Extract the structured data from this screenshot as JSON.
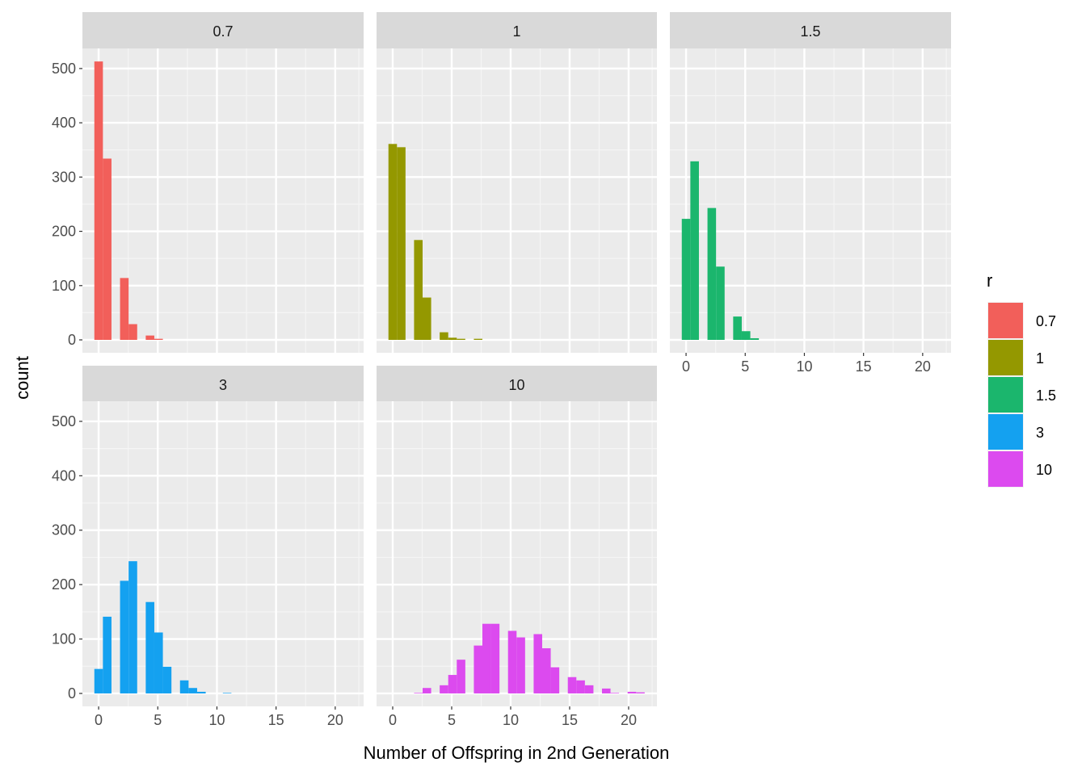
{
  "chart_data": {
    "type": "bar",
    "subtype": "faceted histogram",
    "xlabel": "Number of Offspring in 2nd Generation",
    "ylabel": "count",
    "xlim": [
      -1.37,
      22.4
    ],
    "ylim": [
      -23.8,
      537
    ],
    "x_ticks": [
      "0",
      "5",
      "10",
      "15",
      "20"
    ],
    "y_ticks": [
      "0",
      "100",
      "200",
      "300",
      "400",
      "500"
    ],
    "grid": true,
    "bins": 30,
    "legend": {
      "title": "r",
      "position": "right"
    },
    "facets": [
      {
        "label": "0.7",
        "color": "#F25F5A",
        "x": [
          0,
          1,
          2,
          3,
          4,
          5
        ],
        "counts": [
          513,
          334,
          114,
          29,
          8,
          2
        ]
      },
      {
        "label": "1",
        "color": "#949800",
        "x": [
          0,
          1,
          2,
          3,
          4,
          5,
          6,
          7
        ],
        "counts": [
          361,
          355,
          184,
          78,
          14,
          4,
          2,
          2
        ]
      },
      {
        "label": "1.5",
        "color": "#1BB66D",
        "x": [
          0,
          1,
          2,
          3,
          4,
          5,
          6
        ],
        "counts": [
          223,
          329,
          243,
          135,
          43,
          16,
          3
        ]
      },
      {
        "label": "3",
        "color": "#14A1F0",
        "x": [
          0,
          1,
          2,
          3,
          4,
          5,
          6,
          7,
          8,
          9,
          11
        ],
        "counts": [
          45,
          141,
          207,
          243,
          168,
          112,
          49,
          24,
          10,
          3,
          1
        ]
      },
      {
        "label": "10",
        "color": "#DC4AEF",
        "x": [
          2,
          3,
          4,
          5,
          6,
          7,
          8,
          9,
          10,
          11,
          12,
          13,
          14,
          15,
          16,
          17,
          18,
          19,
          20,
          21
        ],
        "counts": [
          1,
          10,
          15,
          34,
          62,
          88,
          128,
          128,
          115,
          103,
          109,
          83,
          48,
          30,
          24,
          15,
          9,
          1,
          3,
          2
        ]
      }
    ]
  }
}
